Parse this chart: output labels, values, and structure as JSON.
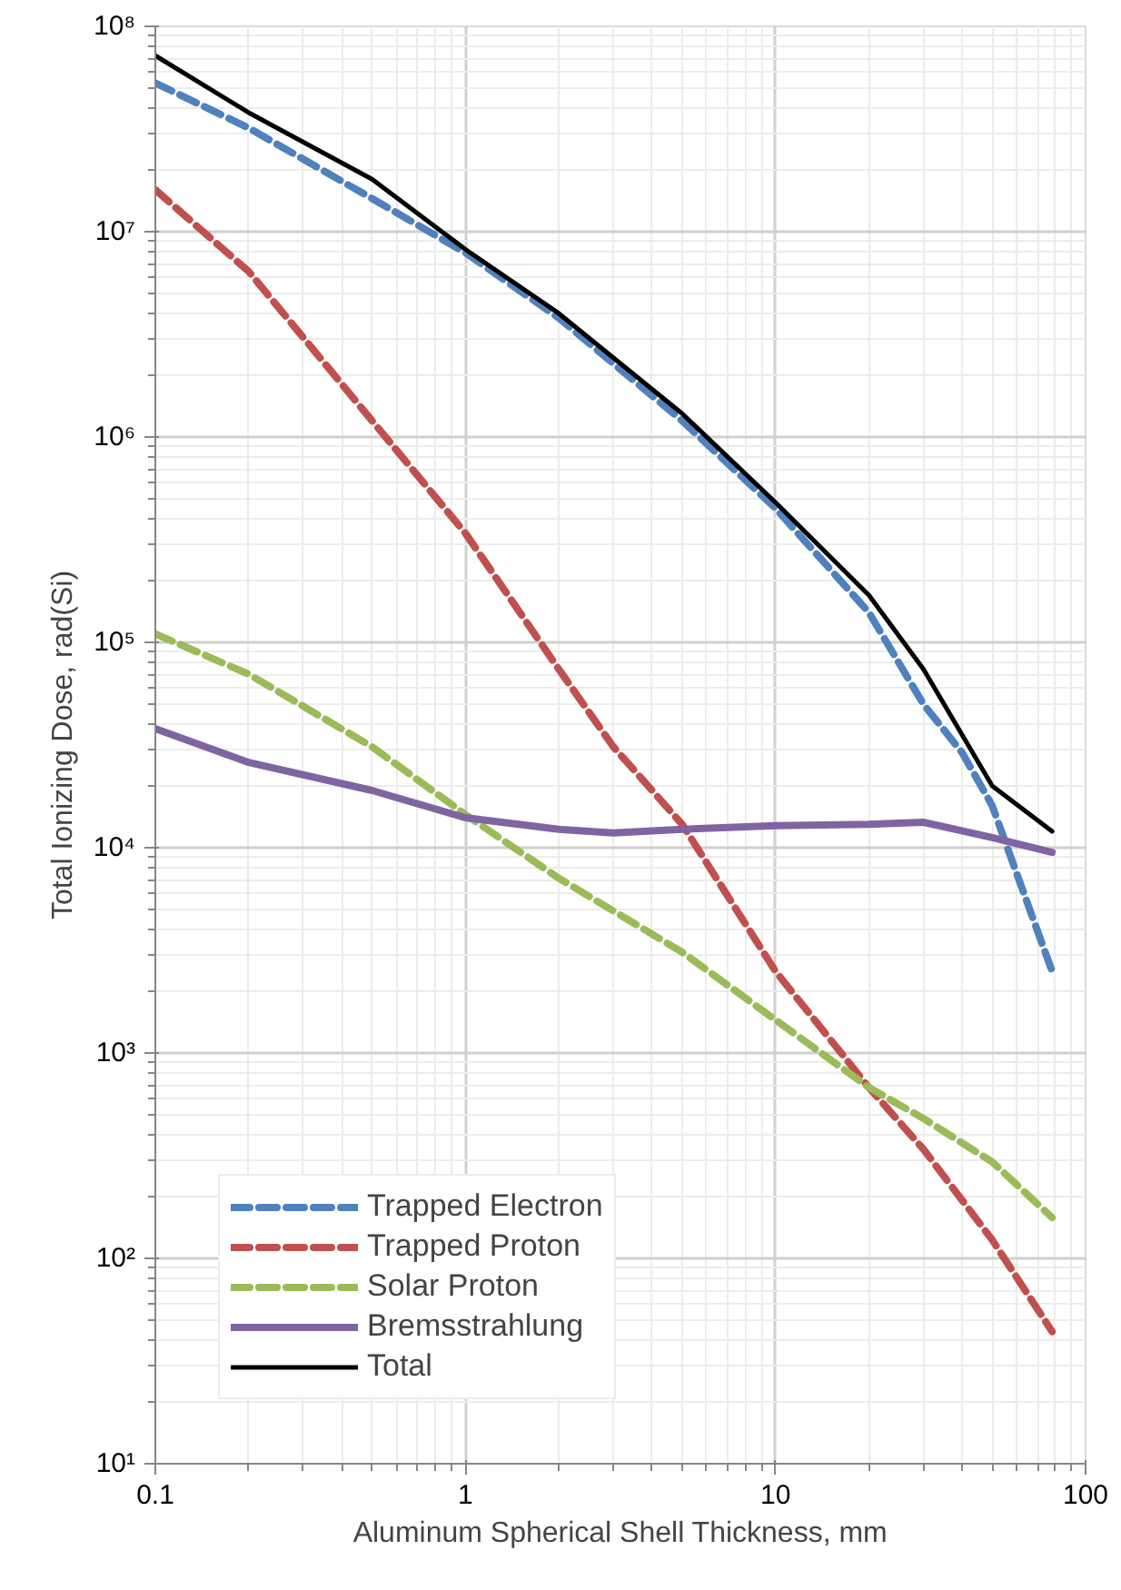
{
  "chart_data": {
    "type": "line",
    "xlabel": "Aluminum Spherical Shell Thickness, mm",
    "ylabel": "Total Ionizing Dose, rad(Si)",
    "log": "xy",
    "grid": true,
    "legend": "bottom left",
    "xlim": [
      0.1,
      100
    ],
    "xticks": [
      0.1,
      1,
      10,
      100
    ],
    "ylim": [
      10,
      100000000
    ],
    "yticks": [
      {
        "value": 10,
        "label": "10¹"
      },
      {
        "value": 100,
        "label": "10²"
      },
      {
        "value": 1000,
        "label": "10³"
      },
      {
        "value": 10000,
        "label": "10⁴"
      },
      {
        "value": 100000,
        "label": "10⁵"
      },
      {
        "value": 1000000,
        "label": "10⁶"
      },
      {
        "value": 10000000,
        "label": "10⁷"
      },
      {
        "value": 100000000,
        "label": "10⁸"
      }
    ],
    "series": [
      {
        "name": "Trapped Electron",
        "color": "#4f81bd",
        "line_style": "dashed",
        "x": [
          0.1,
          0.2,
          0.5,
          1,
          2,
          5,
          10,
          20,
          30,
          40,
          50,
          78
        ],
        "values": [
          53000000,
          32000000,
          14500000,
          7900000,
          3800000,
          1200000,
          450000,
          140000,
          50000,
          29000,
          16000,
          2500
        ]
      },
      {
        "name": "Trapped Proton",
        "color": "#c0504d",
        "line_style": "dashed",
        "x": [
          0.1,
          0.2,
          0.5,
          1,
          2,
          3,
          5,
          10,
          20,
          30,
          50,
          78
        ],
        "values": [
          16000000,
          6400000,
          1200000,
          340000,
          74000,
          31000,
          13000,
          2500,
          680,
          340,
          123,
          44
        ]
      },
      {
        "name": "Solar Proton",
        "color": "#9bbb59",
        "line_style": "dashed",
        "x": [
          0.1,
          0.2,
          0.5,
          1,
          2,
          5,
          10,
          20,
          30,
          50,
          78
        ],
        "values": [
          110000,
          70000,
          31000,
          14500,
          7100,
          3100,
          1450,
          680,
          480,
          295,
          158
        ]
      },
      {
        "name": "Bremsstrahlung",
        "color": "#8064a2",
        "line_style": "solid",
        "x": [
          0.1,
          0.2,
          0.5,
          1,
          2,
          3,
          5,
          10,
          20,
          30,
          50,
          78
        ],
        "values": [
          38000,
          26000,
          19000,
          14000,
          12300,
          11800,
          12300,
          12800,
          13000,
          13300,
          11200,
          9500
        ]
      },
      {
        "name": "Total",
        "color": "#000000",
        "line_style": "solid",
        "x": [
          0.1,
          0.2,
          0.5,
          1,
          2,
          5,
          10,
          20,
          30,
          50,
          78
        ],
        "values": [
          72000000,
          38000000,
          18000000,
          8200000,
          4000000,
          1300000,
          480000,
          170000,
          74000,
          20000,
          12000
        ]
      }
    ]
  }
}
